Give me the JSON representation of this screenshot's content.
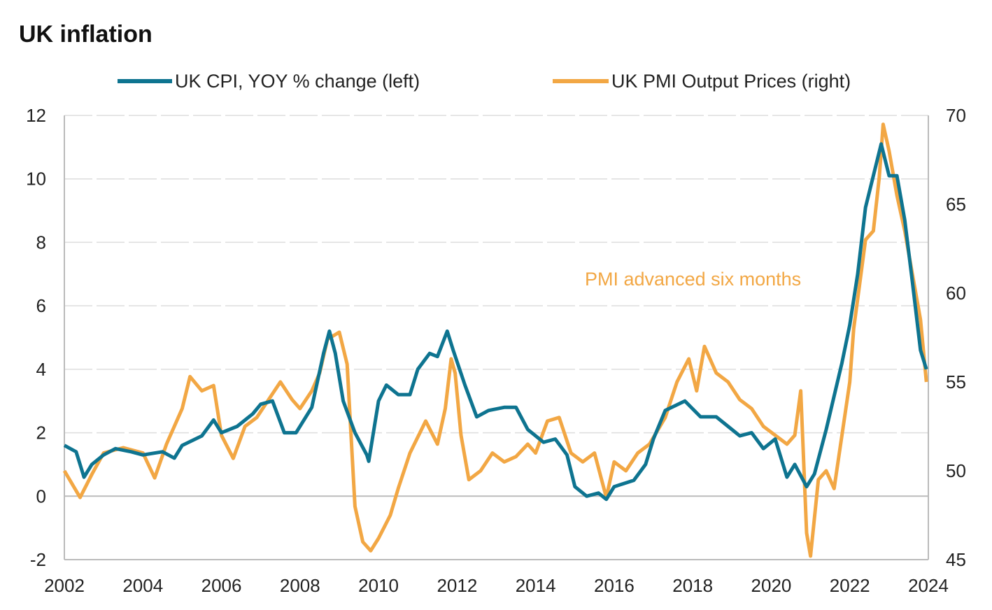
{
  "chart_data": {
    "type": "line",
    "title": "UK inflation",
    "xlabel": "",
    "ylabel_left": "",
    "ylabel_right": "",
    "xlim": [
      2002,
      2024
    ],
    "ylim_left": [
      -2,
      12
    ],
    "ylim_right": [
      45,
      70
    ],
    "x_ticks": [
      "2002",
      "2004",
      "2006",
      "2008",
      "2010",
      "2012",
      "2014",
      "2016",
      "2018",
      "2020",
      "2022",
      "2024"
    ],
    "y_ticks_left": [
      "12",
      "10",
      "8",
      "6",
      "4",
      "2",
      "0",
      "-2"
    ],
    "y_ticks_right": [
      "70",
      "65",
      "60",
      "55",
      "50",
      "45"
    ],
    "grid": true,
    "legend_position": "top",
    "annotation": "PMI advanced  six months",
    "series": [
      {
        "name": "UK CPI, YOY % change (left)",
        "axis": "left",
        "color": "#0E7490",
        "x": [
          2002.0,
          2002.3,
          2002.5,
          2002.7,
          2003.0,
          2003.3,
          2003.7,
          2004.0,
          2004.5,
          2004.8,
          2005.0,
          2005.5,
          2005.8,
          2006.0,
          2006.4,
          2006.8,
          2007.0,
          2007.3,
          2007.6,
          2007.9,
          2008.3,
          2008.6,
          2008.75,
          2008.9,
          2009.1,
          2009.4,
          2009.7,
          2009.75,
          2010.0,
          2010.2,
          2010.5,
          2010.8,
          2011.0,
          2011.3,
          2011.5,
          2011.75,
          2011.9,
          2012.2,
          2012.5,
          2012.8,
          2013.2,
          2013.5,
          2013.8,
          2014.2,
          2014.5,
          2014.8,
          2015.0,
          2015.3,
          2015.6,
          2015.8,
          2016.0,
          2016.5,
          2016.8,
          2017.0,
          2017.3,
          2017.8,
          2018.2,
          2018.6,
          2018.9,
          2019.2,
          2019.5,
          2019.8,
          2020.1,
          2020.4,
          2020.6,
          2020.9,
          2021.1,
          2021.4,
          2021.8,
          2022.0,
          2022.2,
          2022.4,
          2022.6,
          2022.8,
          2023.0,
          2023.2,
          2023.4,
          2023.6,
          2023.8,
          2023.95
        ],
        "values": [
          1.6,
          1.4,
          0.6,
          1.0,
          1.3,
          1.5,
          1.4,
          1.3,
          1.4,
          1.2,
          1.6,
          1.9,
          2.4,
          2.0,
          2.2,
          2.6,
          2.9,
          3.0,
          2.0,
          2.0,
          2.8,
          4.5,
          5.2,
          4.5,
          3.0,
          2.0,
          1.3,
          1.1,
          3.0,
          3.5,
          3.2,
          3.2,
          4.0,
          4.5,
          4.4,
          5.2,
          4.6,
          3.5,
          2.5,
          2.7,
          2.8,
          2.8,
          2.1,
          1.7,
          1.8,
          1.3,
          0.3,
          0.0,
          0.1,
          -0.1,
          0.3,
          0.5,
          1.0,
          1.8,
          2.7,
          3.0,
          2.5,
          2.5,
          2.2,
          1.9,
          2.0,
          1.5,
          1.8,
          0.6,
          1.0,
          0.3,
          0.7,
          2.1,
          4.2,
          5.4,
          7.0,
          9.1,
          10.1,
          11.1,
          10.1,
          10.1,
          8.7,
          6.7,
          4.6,
          4.0
        ]
      },
      {
        "name": "UK PMI Output Prices (right)",
        "axis": "right",
        "color": "#F2A744",
        "x": [
          2002.0,
          2002.4,
          2002.7,
          2003.0,
          2003.5,
          2004.0,
          2004.3,
          2004.6,
          2005.0,
          2005.2,
          2005.5,
          2005.8,
          2006.0,
          2006.3,
          2006.6,
          2006.9,
          2007.2,
          2007.5,
          2007.8,
          2008.0,
          2008.3,
          2008.5,
          2008.7,
          2009.0,
          2009.2,
          2009.4,
          2009.6,
          2009.8,
          2010.0,
          2010.3,
          2010.5,
          2010.8,
          2011.2,
          2011.5,
          2011.7,
          2011.85,
          2011.95,
          2012.1,
          2012.3,
          2012.6,
          2012.9,
          2013.2,
          2013.5,
          2013.8,
          2014.0,
          2014.3,
          2014.6,
          2014.9,
          2015.2,
          2015.5,
          2015.8,
          2016.0,
          2016.3,
          2016.6,
          2016.9,
          2017.3,
          2017.6,
          2017.9,
          2018.1,
          2018.3,
          2018.6,
          2018.9,
          2019.2,
          2019.5,
          2019.8,
          2020.1,
          2020.4,
          2020.6,
          2020.75,
          2020.9,
          2021.0,
          2021.2,
          2021.4,
          2021.6,
          2021.8,
          2022.0,
          2022.1,
          2022.25,
          2022.4,
          2022.6,
          2022.75,
          2022.85,
          2023.0,
          2023.2,
          2023.4,
          2023.6,
          2023.8,
          2023.95
        ],
        "values": [
          50,
          48.5,
          49.8,
          51,
          51.3,
          51,
          49.6,
          51.5,
          53.5,
          55.3,
          54.5,
          54.8,
          52,
          50.7,
          52.5,
          53,
          54,
          55,
          54,
          53.5,
          54.5,
          55.5,
          57.4,
          57.8,
          56,
          48,
          46,
          45.5,
          46.2,
          47.5,
          49,
          51,
          52.8,
          51.5,
          53.5,
          56.3,
          55.5,
          52,
          49.5,
          50,
          51,
          50.5,
          50.8,
          51.5,
          51,
          52.8,
          53,
          51,
          50.5,
          51,
          48.5,
          50.5,
          50,
          51,
          51.5,
          53,
          55,
          56.3,
          54.5,
          57,
          55.5,
          55,
          54,
          53.5,
          52.5,
          52,
          51.5,
          52,
          54.5,
          46.5,
          45.2,
          49.5,
          50,
          49,
          52,
          55,
          58,
          60.5,
          63,
          63.5,
          66.5,
          69.5,
          68,
          65.5,
          63.5,
          61,
          58.5,
          55
        ]
      }
    ]
  }
}
